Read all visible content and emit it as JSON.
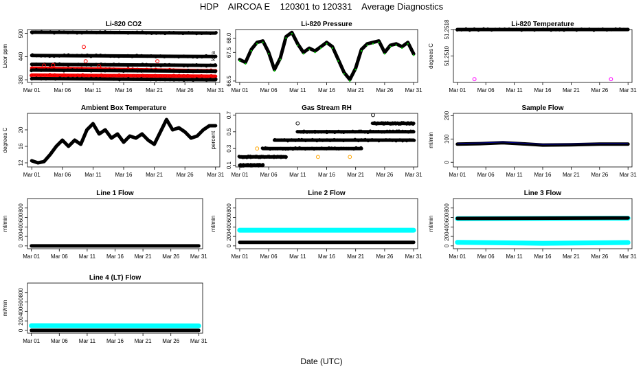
{
  "title": "HDP    AIRCOA E    120301 to 120331    Average Diagnostics",
  "xlabel": "Date (UTC)",
  "colors": {
    "black": "#000000",
    "red": "#ff0000",
    "green": "#00cc00",
    "cyan": "#00ffff",
    "orange": "#ffa500",
    "magenta": "#ff00ff",
    "blue": "#0000ff"
  },
  "chart_data": [
    {
      "type": "scatter",
      "title": "Li-820 CO2",
      "ylabel": "Licor ppm",
      "x_ticks": [
        "Mar 01",
        "Mar 06",
        "Mar 11",
        "Mar 16",
        "Mar 21",
        "Mar 26",
        "Mar 31"
      ],
      "y_ticks": [
        "380",
        "440",
        "500"
      ],
      "y_tick_values": [
        380,
        440,
        500
      ],
      "ylim": [
        373,
        510
      ],
      "series": [
        {
          "name": "black",
          "color": "#000000",
          "values": [
            [
              1,
              503
            ],
            [
              31,
              501
            ]
          ]
        },
        {
          "name": "black",
          "color": "#000000",
          "values": [
            [
              1,
              443
            ],
            [
              31,
              440
            ]
          ]
        },
        {
          "name": "black",
          "color": "#000000",
          "values": [
            [
              1,
              420
            ],
            [
              31,
              417
            ]
          ]
        },
        {
          "name": "red",
          "color": "#ff0000",
          "values": [
            [
              1,
              410
            ],
            [
              31,
              403
            ]
          ]
        },
        {
          "name": "black",
          "color": "#000000",
          "values": [
            [
              1,
              405
            ],
            [
              31,
              402
            ]
          ]
        },
        {
          "name": "red",
          "color": "#ff0000",
          "values": [
            [
              1,
              392
            ],
            [
              31,
              389
            ]
          ]
        },
        {
          "name": "black",
          "color": "#000000",
          "values": [
            [
              1,
              383
            ],
            [
              31,
              380
            ]
          ]
        }
      ],
      "outliers": [
        [
          9.5,
          465
        ],
        [
          9.8,
          428
        ],
        [
          12,
          415
        ],
        [
          21.5,
          428
        ],
        [
          3,
          417
        ],
        [
          4.5,
          418
        ]
      ]
    },
    {
      "type": "line",
      "title": "Li-820 Pressure",
      "ylabel": "kPa",
      "x_ticks": [
        "Mar 01",
        "Mar 06",
        "Mar 11",
        "Mar 16",
        "Mar 21",
        "Mar 26",
        "Mar 31"
      ],
      "y_ticks": [
        "66.5",
        "67.5",
        "68.0"
      ],
      "y_tick_values": [
        66.5,
        67.5,
        68.0
      ],
      "ylim": [
        66.45,
        68.3
      ],
      "series": [
        {
          "name": "pressure",
          "color": "#000000",
          "values": [
            [
              1,
              67.25
            ],
            [
              2,
              67.15
            ],
            [
              3,
              67.6
            ],
            [
              4,
              67.85
            ],
            [
              5,
              67.9
            ],
            [
              6,
              67.5
            ],
            [
              7,
              66.9
            ],
            [
              8,
              67.3
            ],
            [
              9,
              68.05
            ],
            [
              10,
              68.2
            ],
            [
              11,
              67.8
            ],
            [
              12,
              67.5
            ],
            [
              13,
              67.65
            ],
            [
              14,
              67.55
            ],
            [
              15,
              67.7
            ],
            [
              16,
              67.85
            ],
            [
              17,
              67.7
            ],
            [
              18,
              67.25
            ],
            [
              19,
              66.8
            ],
            [
              20,
              66.55
            ],
            [
              21,
              66.95
            ],
            [
              22,
              67.6
            ],
            [
              23,
              67.8
            ],
            [
              24,
              67.85
            ],
            [
              25,
              67.9
            ],
            [
              26,
              67.5
            ],
            [
              27,
              67.75
            ],
            [
              28,
              67.8
            ],
            [
              29,
              67.7
            ],
            [
              30,
              67.85
            ],
            [
              31,
              67.45
            ]
          ]
        }
      ]
    },
    {
      "type": "scatter",
      "title": "Li-820 Temperature",
      "ylabel": "degrees C",
      "x_ticks": [
        "Mar 01",
        "Mar 06",
        "Mar 11",
        "Mar 16",
        "Mar 21",
        "Mar 26",
        "Mar 31"
      ],
      "y_ticks": [
        "51.2510",
        "51.2518"
      ],
      "y_tick_values": [
        51.251,
        51.2518
      ],
      "ylim": [
        51.2502,
        51.2518
      ],
      "series": [
        {
          "name": "temperature",
          "color": "#000000",
          "values": [
            [
              1,
              51.2518
            ],
            [
              31,
              51.2518
            ]
          ]
        }
      ],
      "outliers": [
        [
          4,
          51.2503
        ],
        [
          28,
          51.2503
        ]
      ]
    },
    {
      "type": "line",
      "title": "Ambient Box Temperature",
      "ylabel": "degrees C",
      "x_ticks": [
        "Mar 01",
        "Mar 06",
        "Mar 11",
        "Mar 16",
        "Mar 21",
        "Mar 26",
        "Mar 31"
      ],
      "y_ticks": [
        "12",
        "16",
        "20"
      ],
      "y_tick_values": [
        12,
        16,
        20
      ],
      "ylim": [
        11,
        24
      ],
      "series": [
        {
          "name": "temperature",
          "color": "#000000",
          "values": [
            [
              1,
              12.5
            ],
            [
              2,
              12
            ],
            [
              3,
              12.3
            ],
            [
              4,
              14
            ],
            [
              5,
              16
            ],
            [
              6,
              17.5
            ],
            [
              7,
              16
            ],
            [
              8,
              17.5
            ],
            [
              9,
              16.5
            ],
            [
              10,
              20
            ],
            [
              11,
              21.5
            ],
            [
              12,
              19
            ],
            [
              13,
              20
            ],
            [
              14,
              18
            ],
            [
              15,
              19
            ],
            [
              16,
              17
            ],
            [
              17,
              18.5
            ],
            [
              18,
              18
            ],
            [
              19,
              19
            ],
            [
              20,
              17.5
            ],
            [
              21,
              16.5
            ],
            [
              22,
              19.5
            ],
            [
              23,
              22.5
            ],
            [
              24,
              20
            ],
            [
              25,
              20.5
            ],
            [
              26,
              19.5
            ],
            [
              27,
              18
            ],
            [
              28,
              18.5
            ],
            [
              29,
              20
            ],
            [
              30,
              21
            ],
            [
              31,
              21
            ]
          ]
        }
      ]
    },
    {
      "type": "scatter",
      "title": "Gas Stream RH",
      "ylabel": "percent",
      "x_ticks": [
        "Mar 01",
        "Mar 06",
        "Mar 11",
        "Mar 16",
        "Mar 21",
        "Mar 26",
        "Mar 31"
      ],
      "y_ticks": [
        "0.1",
        "0.3",
        "0.5",
        "0.7"
      ],
      "y_tick_values": [
        0.1,
        0.3,
        0.5,
        0.7
      ],
      "ylim": [
        0.08,
        0.72
      ],
      "series": [
        {
          "name": "0.1",
          "color": "#000000",
          "values": [
            [
              1,
              0.1
            ],
            [
              5,
              0.1
            ]
          ]
        },
        {
          "name": "0.2",
          "color": "#000000",
          "values": [
            [
              1,
              0.2
            ],
            [
              9,
              0.2
            ]
          ]
        },
        {
          "name": "0.3",
          "color": "#000000",
          "values": [
            [
              5,
              0.3
            ],
            [
              22,
              0.3
            ]
          ]
        },
        {
          "name": "0.4",
          "color": "#000000",
          "values": [
            [
              7,
              0.4
            ],
            [
              31,
              0.4
            ]
          ]
        },
        {
          "name": "0.5",
          "color": "#000000",
          "values": [
            [
              11,
              0.5
            ],
            [
              31,
              0.5
            ]
          ]
        },
        {
          "name": "0.6",
          "color": "#000000",
          "values": [
            [
              24,
              0.6
            ],
            [
              31,
              0.6
            ]
          ]
        }
      ],
      "outliers": [
        [
          11,
          0.6
        ],
        [
          12,
          0.5
        ],
        [
          14,
          0.5
        ],
        [
          16,
          0.5
        ],
        [
          24,
          0.7
        ],
        [
          4,
          0.3
        ],
        [
          14.5,
          0.2
        ],
        [
          20,
          0.2
        ]
      ]
    },
    {
      "type": "line",
      "title": "Sample Flow",
      "ylabel": "ml/min",
      "x_ticks": [
        "Mar 01",
        "Mar 06",
        "Mar 11",
        "Mar 16",
        "Mar 21",
        "Mar 26",
        "Mar 31"
      ],
      "y_ticks": [
        "0",
        "100",
        "200"
      ],
      "y_tick_values": [
        0,
        100,
        200
      ],
      "ylim": [
        -20,
        210
      ],
      "series": [
        {
          "name": "sample",
          "color": "#000000",
          "values": [
            [
              1,
              78
            ],
            [
              5,
              80
            ],
            [
              9,
              84
            ],
            [
              12,
              80
            ],
            [
              16,
              74
            ],
            [
              21,
              75
            ],
            [
              26,
              78
            ],
            [
              31,
              78
            ]
          ]
        }
      ]
    },
    {
      "type": "line",
      "title": "Line 1 Flow",
      "ylabel": "ml/min",
      "x_ticks": [
        "Mar 01",
        "Mar 06",
        "Mar 11",
        "Mar 16",
        "Mar 21",
        "Mar 26",
        "Mar 31"
      ],
      "y_ticks": [
        "0",
        "200",
        "400",
        "600",
        "800"
      ],
      "y_tick_values": [
        0,
        200,
        400,
        600,
        800
      ],
      "ylim": [
        -60,
        1000
      ],
      "series": [
        {
          "name": "line1",
          "color": "#000000",
          "values": [
            [
              1,
              0
            ],
            [
              31,
              0
            ]
          ]
        }
      ]
    },
    {
      "type": "line",
      "title": "Line 2 Flow",
      "ylabel": "ml/min",
      "x_ticks": [
        "Mar 01",
        "Mar 06",
        "Mar 11",
        "Mar 16",
        "Mar 21",
        "Mar 26",
        "Mar 31"
      ],
      "y_ticks": [
        "0",
        "200",
        "400",
        "600",
        "800"
      ],
      "y_tick_values": [
        0,
        200,
        400,
        600,
        800
      ],
      "ylim": [
        -60,
        1000
      ],
      "series": [
        {
          "name": "cyan",
          "color": "#00ffff",
          "values": [
            [
              1,
              330
            ],
            [
              31,
              330
            ]
          ]
        },
        {
          "name": "black",
          "color": "#000000",
          "values": [
            [
              1,
              75
            ],
            [
              31,
              75
            ]
          ]
        }
      ]
    },
    {
      "type": "line",
      "title": "Line 3 Flow",
      "ylabel": "ml/min",
      "x_ticks": [
        "Mar 01",
        "Mar 06",
        "Mar 11",
        "Mar 16",
        "Mar 21",
        "Mar 26",
        "Mar 31"
      ],
      "y_ticks": [
        "0",
        "200",
        "400",
        "600",
        "800"
      ],
      "y_tick_values": [
        0,
        200,
        400,
        600,
        800
      ],
      "ylim": [
        -60,
        1000
      ],
      "series": [
        {
          "name": "cyan-high",
          "color": "#00ffff",
          "values": [
            [
              1,
              575
            ],
            [
              31,
              585
            ]
          ]
        },
        {
          "name": "black",
          "color": "#000000",
          "values": [
            [
              1,
              580
            ],
            [
              31,
              590
            ]
          ]
        },
        {
          "name": "cyan-low",
          "color": "#00ffff",
          "values": [
            [
              1,
              75
            ],
            [
              16,
              55
            ],
            [
              31,
              70
            ]
          ]
        }
      ]
    },
    {
      "type": "line",
      "title": "Line 4 (LT) Flow",
      "ylabel": "ml/min",
      "x_ticks": [
        "Mar 01",
        "Mar 06",
        "Mar 11",
        "Mar 16",
        "Mar 21",
        "Mar 26",
        "Mar 31"
      ],
      "y_ticks": [
        "0",
        "200",
        "400",
        "600",
        "800"
      ],
      "y_tick_values": [
        0,
        200,
        400,
        600,
        800
      ],
      "ylim": [
        -60,
        1000
      ],
      "series": [
        {
          "name": "cyan",
          "color": "#00ffff",
          "values": [
            [
              1,
              100
            ],
            [
              31,
              95
            ]
          ]
        },
        {
          "name": "black",
          "color": "#000000",
          "values": [
            [
              1,
              0
            ],
            [
              31,
              0
            ]
          ]
        }
      ]
    }
  ]
}
